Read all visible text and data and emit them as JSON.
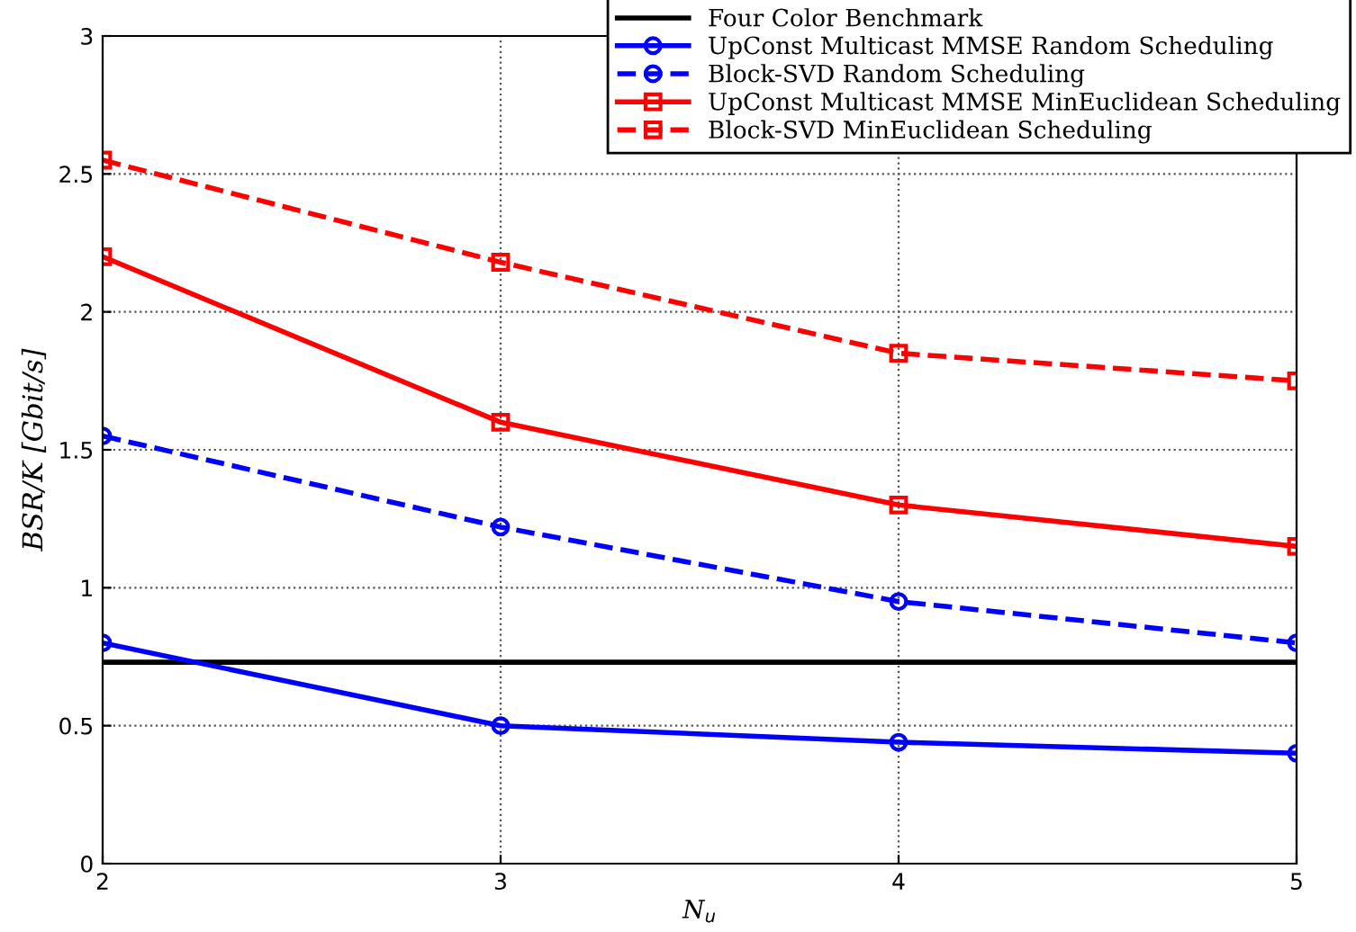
{
  "chart_data": {
    "type": "line",
    "xlabel": "N$_{u}$",
    "ylabel": "BSR/K [Gbit/s]",
    "x": [
      2,
      3,
      4,
      5
    ],
    "xlim": [
      2,
      5
    ],
    "xticks": [
      2,
      3,
      4,
      5
    ],
    "ylim": [
      0,
      3
    ],
    "yticks": [
      0,
      0.5,
      1,
      1.5,
      2,
      2.5,
      3
    ],
    "grid": true,
    "legend": "top right",
    "series": [
      {
        "name": "Four Color Benchmark",
        "color": "#000000",
        "marker": "none",
        "line_style": "solid",
        "values": [
          0.73,
          0.73,
          0.73,
          0.73
        ]
      },
      {
        "name": "UpConst Multicast MMSE Random Scheduling",
        "color": "#0000ff",
        "marker": "circle",
        "line_style": "solid",
        "values": [
          0.8,
          0.5,
          0.44,
          0.4
        ]
      },
      {
        "name": "Block-SVD Random Scheduling",
        "color": "#0000ff",
        "marker": "circle",
        "line_style": "dashed",
        "values": [
          1.55,
          1.22,
          0.95,
          0.8
        ]
      },
      {
        "name": "UpConst Multicast MMSE MinEuclidean Scheduling",
        "color": "#ff0000",
        "marker": "square",
        "line_style": "solid",
        "values": [
          2.2,
          1.6,
          1.3,
          1.15
        ]
      },
      {
        "name": "Block-SVD MinEuclidean Scheduling",
        "color": "#ff0000",
        "marker": "square",
        "line_style": "dashed",
        "values": [
          2.55,
          2.18,
          1.85,
          1.75
        ]
      }
    ]
  }
}
